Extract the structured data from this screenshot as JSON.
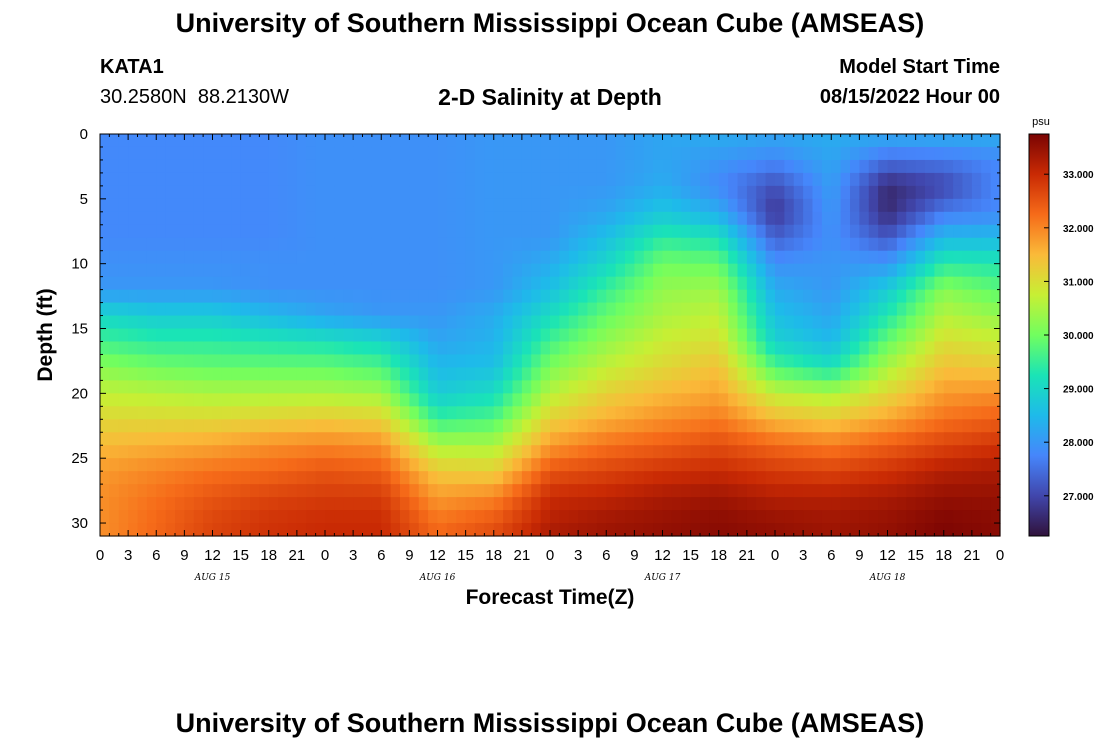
{
  "page": {
    "title": "University of Southern Mississippi Ocean Cube (AMSEAS)",
    "title_repeat": "University of Southern Mississippi Ocean Cube (AMSEAS)",
    "station_id": "KATA1",
    "station_coords": "30.2580N  88.2130W",
    "plot_title": "2-D Salinity at Depth",
    "model_start_label": "Model Start Time",
    "model_start_value": "08/15/2022 Hour 00"
  },
  "chart_data": {
    "type": "heatmap",
    "title": "2-D Salinity at Depth",
    "xlabel": "Forecast Time(Z)",
    "ylabel": "Depth (ft)",
    "x_unit": "hours since 08/15/2022 00Z",
    "x_range": [
      0,
      96
    ],
    "x_ticks": [
      0,
      3,
      6,
      9,
      12,
      15,
      18,
      21,
      24,
      27,
      30,
      33,
      36,
      39,
      42,
      45,
      48,
      51,
      54,
      57,
      60,
      63,
      66,
      69,
      72,
      75,
      78,
      81,
      84,
      87,
      90,
      93,
      96
    ],
    "x_tick_labels": [
      "0",
      "3",
      "6",
      "9",
      "12",
      "15",
      "18",
      "21",
      "0",
      "3",
      "6",
      "9",
      "12",
      "15",
      "18",
      "21",
      "0",
      "3",
      "6",
      "9",
      "12",
      "15",
      "18",
      "21",
      "0",
      "3",
      "6",
      "9",
      "12",
      "15",
      "18",
      "21",
      "0"
    ],
    "day_labels": [
      {
        "hour": 12,
        "text": "AUG 15"
      },
      {
        "hour": 36,
        "text": "AUG 16"
      },
      {
        "hour": 60,
        "text": "AUG 17"
      },
      {
        "hour": 84,
        "text": "AUG 18"
      }
    ],
    "y_range": [
      0,
      31
    ],
    "y_ticks": [
      0,
      5,
      10,
      15,
      20,
      25,
      30
    ],
    "y_inverted": true,
    "colorbar": {
      "unit": "psu",
      "range": [
        26.25,
        33.75
      ],
      "ticks": [
        27.0,
        28.0,
        29.0,
        30.0,
        31.0,
        32.0,
        33.0
      ],
      "tick_labels": [
        "27.000",
        "28.000",
        "29.000",
        "30.000",
        "31.000",
        "32.000",
        "33.000"
      ],
      "colormap": [
        "#30123b",
        "#4146ac",
        "#4686fb",
        "#1ebaea",
        "#1ae4b6",
        "#71fe5f",
        "#c7ef34",
        "#faba39",
        "#f66b19",
        "#c92a04",
        "#7a0403"
      ]
    },
    "depth_levels": [
      0,
      2,
      4,
      6,
      8,
      10,
      12,
      14,
      16,
      18,
      20,
      22,
      24,
      26,
      28,
      30,
      31
    ],
    "profile_hours": [
      0,
      6,
      12,
      18,
      24,
      30,
      36,
      42,
      48,
      54,
      60,
      66,
      72,
      78,
      84,
      90,
      96
    ],
    "salinity": [
      [
        27.8,
        27.8,
        27.8,
        27.8,
        27.9,
        27.9,
        27.9,
        28.0,
        28.0,
        28.0,
        28.2,
        28.3,
        28.2,
        28.3,
        28.3,
        28.3,
        28.3
      ],
      [
        27.8,
        27.8,
        27.8,
        27.8,
        27.9,
        27.9,
        27.9,
        28.0,
        28.0,
        28.0,
        28.2,
        28.0,
        27.8,
        28.2,
        27.5,
        27.6,
        27.8
      ],
      [
        27.8,
        27.8,
        27.8,
        27.8,
        27.9,
        27.9,
        27.9,
        28.0,
        28.0,
        28.0,
        28.3,
        27.8,
        27.1,
        28.1,
        26.6,
        27.0,
        27.8
      ],
      [
        27.8,
        27.8,
        27.8,
        27.8,
        27.9,
        27.9,
        27.9,
        28.0,
        28.0,
        28.2,
        28.7,
        28.3,
        26.8,
        28.0,
        26.6,
        27.6,
        27.8
      ],
      [
        27.8,
        27.8,
        27.8,
        27.8,
        27.9,
        27.9,
        27.9,
        28.0,
        28.0,
        28.6,
        29.4,
        29.2,
        27.3,
        27.9,
        27.2,
        28.5,
        28.5
      ],
      [
        27.9,
        27.9,
        27.9,
        27.9,
        27.9,
        27.9,
        27.9,
        28.0,
        28.3,
        29.0,
        30.0,
        29.9,
        27.9,
        28.0,
        28.0,
        29.4,
        29.3
      ],
      [
        28.0,
        28.0,
        28.0,
        27.9,
        27.9,
        27.9,
        27.9,
        28.0,
        28.6,
        29.5,
        30.3,
        30.4,
        28.3,
        28.0,
        28.8,
        30.2,
        29.8
      ],
      [
        29.0,
        28.8,
        28.8,
        28.5,
        28.2,
        28.0,
        28.0,
        28.3,
        29.1,
        29.9,
        30.5,
        30.7,
        28.6,
        28.2,
        29.3,
        30.6,
        30.3
      ],
      [
        29.6,
        29.4,
        29.4,
        29.3,
        29.2,
        29.0,
        28.2,
        28.4,
        29.6,
        30.3,
        30.8,
        31.0,
        28.9,
        28.5,
        29.9,
        31.0,
        30.8
      ],
      [
        30.2,
        30.0,
        29.9,
        29.9,
        29.9,
        29.7,
        28.5,
        28.6,
        30.1,
        30.7,
        31.1,
        31.4,
        29.7,
        29.2,
        30.5,
        31.4,
        31.3
      ],
      [
        30.7,
        30.6,
        30.5,
        30.5,
        30.5,
        30.4,
        28.8,
        29.1,
        30.6,
        31.2,
        31.5,
        31.7,
        30.7,
        30.5,
        31.1,
        31.8,
        31.9
      ],
      [
        31.1,
        31.1,
        31.1,
        31.2,
        31.3,
        31.2,
        29.5,
        29.7,
        31.2,
        31.6,
        31.9,
        32.1,
        31.5,
        31.3,
        31.7,
        32.2,
        32.4
      ],
      [
        31.5,
        31.6,
        31.7,
        31.9,
        32.0,
        31.9,
        30.5,
        30.5,
        31.8,
        32.2,
        32.4,
        32.6,
        32.3,
        32.1,
        32.4,
        32.7,
        32.9
      ],
      [
        31.8,
        32.0,
        32.2,
        32.3,
        32.5,
        32.4,
        31.3,
        31.2,
        32.5,
        32.7,
        32.9,
        33.0,
        32.8,
        32.7,
        32.9,
        33.2,
        33.3
      ],
      [
        31.9,
        32.2,
        32.5,
        32.7,
        32.8,
        32.8,
        31.8,
        32.0,
        33.0,
        33.1,
        33.3,
        33.4,
        33.2,
        33.2,
        33.3,
        33.5,
        33.5
      ],
      [
        31.9,
        32.3,
        32.7,
        32.9,
        33.0,
        33.0,
        32.2,
        32.5,
        33.2,
        33.4,
        33.5,
        33.6,
        33.5,
        33.4,
        33.5,
        33.7,
        33.6
      ],
      [
        31.9,
        32.3,
        32.7,
        32.9,
        33.0,
        33.0,
        32.3,
        32.6,
        33.3,
        33.4,
        33.5,
        33.6,
        33.5,
        33.4,
        33.5,
        33.7,
        33.6
      ]
    ]
  }
}
